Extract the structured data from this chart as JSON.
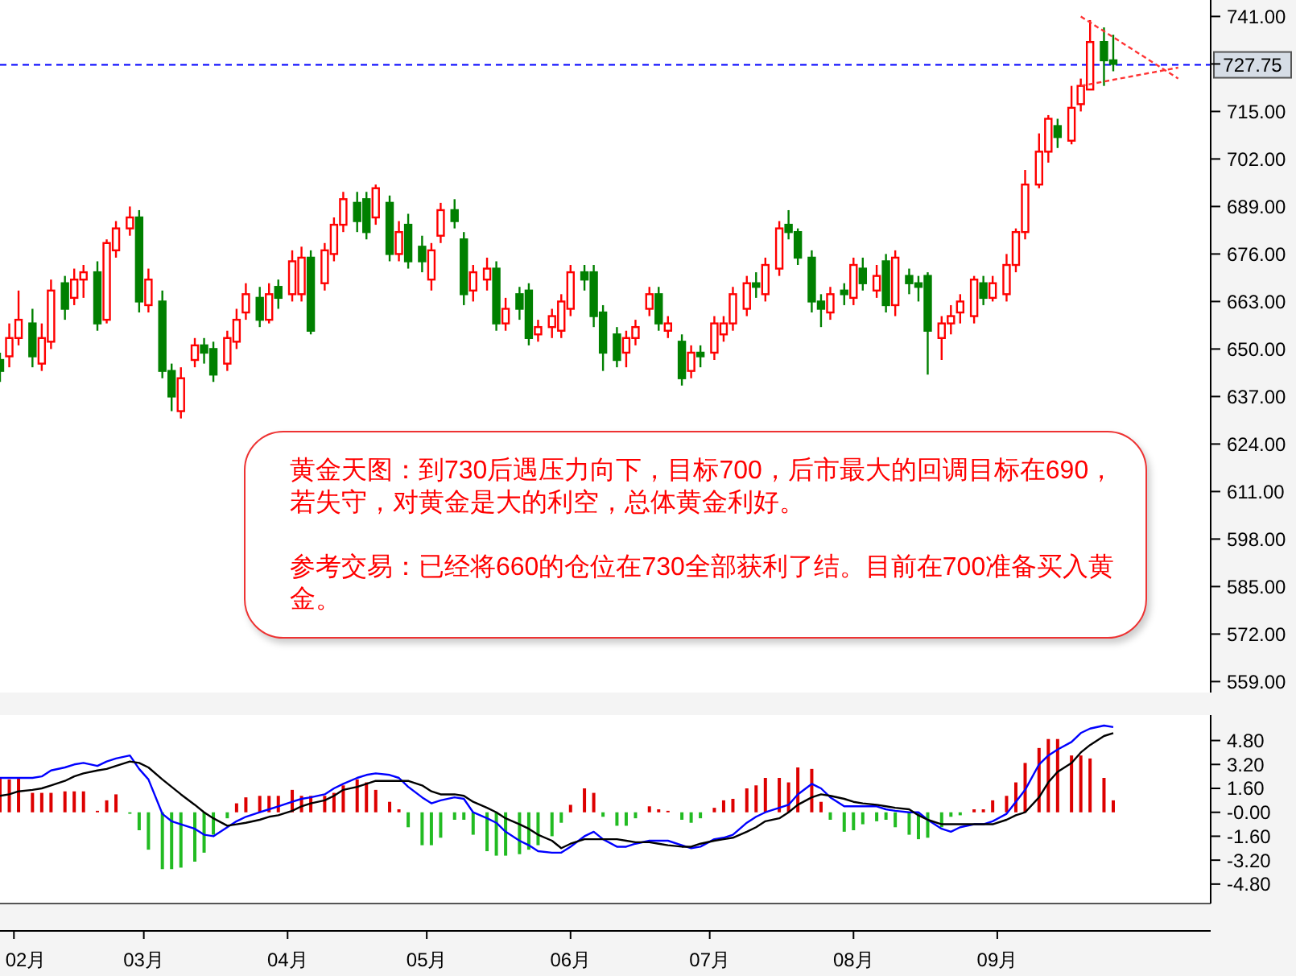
{
  "chart_data": [
    {
      "type": "candlestick",
      "x": [
        "--01-29",
        "--01-31",
        "--02-02",
        "--02-05",
        "--02-07",
        "--02-09",
        "--02-12",
        "--02-14",
        "--02-16",
        "--02-19",
        "--02-21",
        "--02-23",
        "--02-26",
        "--02-28",
        "--03-02",
        "--03-05",
        "--03-07",
        "--03-09",
        "--03-12",
        "--03-14",
        "--03-16",
        "--03-19",
        "--03-21",
        "--03-23",
        "--03-26",
        "--03-28",
        "--03-30",
        "--04-02",
        "--04-04",
        "--04-06",
        "--04-09",
        "--04-11",
        "--04-13",
        "--04-16",
        "--04-18",
        "--04-20",
        "--04-23",
        "--04-25",
        "--04-27",
        "--04-30",
        "--05-02",
        "--05-04",
        "--05-07",
        "--05-09",
        "--05-11",
        "--05-14",
        "--05-16",
        "--05-18",
        "--05-21",
        "--05-23",
        "--05-25",
        "--05-28",
        "--05-30",
        "--06-01",
        "--06-04",
        "--06-06",
        "--06-08",
        "--06-11",
        "--06-13",
        "--06-15",
        "--06-18",
        "--06-20",
        "--06-22",
        "--06-25",
        "--06-27",
        "--06-29",
        "--07-02",
        "--07-04",
        "--07-06",
        "--07-09",
        "--07-11",
        "--07-13",
        "--07-16",
        "--07-18",
        "--07-20",
        "--07-23",
        "--07-25",
        "--07-27",
        "--07-30",
        "--08-01",
        "--08-03",
        "--08-06",
        "--08-08",
        "--08-10",
        "--08-13",
        "--08-15",
        "--08-17",
        "--08-20",
        "--08-22",
        "--08-24",
        "--08-27",
        "--08-29",
        "--08-31",
        "--09-03",
        "--09-05",
        "--09-07",
        "--09-10",
        "--09-12",
        "--09-14",
        "--09-17",
        "--09-19",
        "--09-21",
        "--09-24",
        "--09-26"
      ],
      "ohlc": [
        [
          647,
          649,
          641,
          644
        ],
        [
          648,
          657,
          645,
          653
        ],
        [
          653,
          666,
          651,
          658
        ],
        [
          657,
          661,
          645,
          648
        ],
        [
          646,
          657,
          644,
          653
        ],
        [
          652,
          669,
          650,
          666
        ],
        [
          668,
          670,
          658,
          661
        ],
        [
          664,
          672,
          662,
          669
        ],
        [
          669,
          673,
          664,
          671
        ],
        [
          671,
          674,
          655,
          657
        ],
        [
          658,
          680,
          657,
          679
        ],
        [
          677,
          685,
          675,
          683
        ],
        [
          683,
          689,
          681,
          686
        ],
        [
          686,
          688,
          660,
          663
        ],
        [
          662,
          672,
          660,
          669
        ],
        [
          663,
          666,
          642,
          644
        ],
        [
          644,
          646,
          633,
          637
        ],
        [
          633,
          645,
          631,
          642
        ],
        [
          647,
          653,
          645,
          651
        ],
        [
          651,
          653,
          646,
          649
        ],
        [
          650,
          652,
          641,
          643
        ],
        [
          646,
          655,
          644,
          653
        ],
        [
          652,
          661,
          650,
          658
        ],
        [
          660,
          668,
          658,
          665
        ],
        [
          664,
          667,
          656,
          658
        ],
        [
          658,
          668,
          657,
          665
        ],
        [
          667,
          669,
          661,
          664
        ],
        [
          665,
          677,
          663,
          674
        ],
        [
          665,
          678,
          663,
          675
        ],
        [
          675,
          677,
          654,
          655
        ],
        [
          668,
          679,
          666,
          677
        ],
        [
          676,
          686,
          674,
          684
        ],
        [
          684,
          693,
          682,
          691
        ],
        [
          690,
          693,
          682,
          685
        ],
        [
          691,
          693,
          680,
          682
        ],
        [
          686,
          695,
          684,
          694
        ],
        [
          690,
          692,
          674,
          676
        ],
        [
          676,
          685,
          674,
          682
        ],
        [
          684,
          687,
          672,
          674
        ],
        [
          678,
          681,
          671,
          674
        ],
        [
          669,
          679,
          666,
          677
        ],
        [
          681,
          690,
          679,
          688
        ],
        [
          688,
          691,
          683,
          685
        ],
        [
          680,
          682,
          662,
          665
        ],
        [
          666,
          673,
          663,
          671
        ],
        [
          669,
          675,
          666,
          672
        ],
        [
          672,
          674,
          655,
          657
        ],
        [
          657,
          664,
          655,
          661
        ],
        [
          665,
          667,
          658,
          661
        ],
        [
          666,
          668,
          651,
          653
        ],
        [
          654,
          658,
          652,
          656
        ],
        [
          656,
          661,
          653,
          659
        ],
        [
          655,
          665,
          653,
          663
        ],
        [
          661,
          673,
          659,
          671
        ],
        [
          671,
          673,
          666,
          669
        ],
        [
          671,
          673,
          656,
          659
        ],
        [
          660,
          662,
          644,
          649
        ],
        [
          654,
          656,
          645,
          647
        ],
        [
          649,
          655,
          645,
          653
        ],
        [
          653,
          658,
          651,
          656
        ],
        [
          661,
          667,
          659,
          665
        ],
        [
          665,
          667,
          655,
          657
        ],
        [
          655,
          659,
          653,
          657
        ],
        [
          652,
          654,
          640,
          642
        ],
        [
          644,
          651,
          642,
          649
        ],
        [
          649,
          651,
          645,
          648
        ],
        [
          649,
          659,
          647,
          657
        ],
        [
          654,
          659,
          652,
          657
        ],
        [
          657,
          667,
          655,
          665
        ],
        [
          661,
          670,
          659,
          668
        ],
        [
          668,
          671,
          664,
          667
        ],
        [
          665,
          675,
          663,
          673
        ],
        [
          672,
          685,
          670,
          683
        ],
        [
          684,
          688,
          680,
          682
        ],
        [
          682,
          683,
          673,
          675
        ],
        [
          675,
          677,
          660,
          663
        ],
        [
          663,
          665,
          656,
          661
        ],
        [
          660,
          667,
          658,
          665
        ],
        [
          666,
          668,
          662,
          665
        ],
        [
          664,
          675,
          662,
          673
        ],
        [
          672,
          675,
          666,
          668
        ],
        [
          666,
          673,
          664,
          670
        ],
        [
          674,
          676,
          660,
          662
        ],
        [
          662,
          677,
          659,
          675
        ],
        [
          670,
          672,
          665,
          668
        ],
        [
          668,
          670,
          663,
          667
        ],
        [
          670,
          671,
          643,
          655
        ],
        [
          653,
          659,
          647,
          657
        ],
        [
          657,
          662,
          654,
          659
        ],
        [
          660,
          665,
          657,
          663
        ],
        [
          659,
          670,
          657,
          669
        ],
        [
          668,
          670,
          662,
          664
        ],
        [
          664,
          670,
          663,
          668
        ],
        [
          665,
          676,
          663,
          673
        ],
        [
          673,
          683,
          671,
          682
        ],
        [
          682,
          699,
          680,
          695
        ],
        [
          695,
          709,
          694,
          704
        ],
        [
          704,
          714,
          701,
          713
        ],
        [
          711,
          713,
          705,
          708
        ],
        [
          707,
          722,
          706,
          716
        ],
        [
          717,
          724,
          715,
          722
        ],
        [
          721,
          740,
          721,
          734
        ],
        [
          734,
          738,
          722,
          729
        ],
        [
          729,
          736,
          726,
          728
        ]
      ],
      "xlim": [
        "--01-29",
        "--10-17"
      ],
      "ylim": [
        556,
        745.5
      ],
      "yticks": [
        {
          "value": 741,
          "label": "741.00"
        },
        {
          "value": 728,
          "label": null
        },
        {
          "value": 715,
          "label": "715.00"
        },
        {
          "value": 702,
          "label": "702.00"
        },
        {
          "value": 689,
          "label": "689.00"
        },
        {
          "value": 676,
          "label": "676.00"
        },
        {
          "value": 663,
          "label": "663.00"
        },
        {
          "value": 650,
          "label": "650.00"
        },
        {
          "value": 637,
          "label": "637.00"
        },
        {
          "value": 624,
          "label": "624.00"
        },
        {
          "value": 611,
          "label": "611.00"
        },
        {
          "value": 598,
          "label": "598.00"
        },
        {
          "value": 585,
          "label": "585.00"
        },
        {
          "value": 572,
          "label": "572.00"
        },
        {
          "value": 559,
          "label": "559.00"
        }
      ],
      "tick_labels": "y",
      "series": [
        {
          "type": "line",
          "color": "#ff3333",
          "line_style": "dashed",
          "x": [
            "--09-19",
            "--10-10"
          ],
          "values": [
            741,
            724
          ]
        },
        {
          "type": "line",
          "color": "#ff3333",
          "line_style": "dashed",
          "x": [
            "--09-19",
            "--10-10"
          ],
          "values": [
            722,
            727
          ]
        }
      ],
      "ref_lines": [
        {
          "axis": "y",
          "value": 727.75,
          "label": "727.75",
          "color": "#0000ff",
          "line_style": "dashed"
        }
      ],
      "annotations": [
        "黄金天图：到730后遇压力向下，目标700，后市最大的回调目标在690，若失守，对黄金是大的利空，总体黄金利好。",
        "参考交易：已经将660的仓位在730全部获利了结。目前在700准备买入黄金。"
      ]
    },
    {
      "type": "line",
      "x": [
        "--01-29",
        "--01-31",
        "--02-02",
        "--02-05",
        "--02-07",
        "--02-09",
        "--02-12",
        "--02-14",
        "--02-16",
        "--02-19",
        "--02-21",
        "--02-23",
        "--02-26",
        "--02-28",
        "--03-02",
        "--03-05",
        "--03-07",
        "--03-09",
        "--03-12",
        "--03-14",
        "--03-16",
        "--03-19",
        "--03-21",
        "--03-23",
        "--03-26",
        "--03-28",
        "--03-30",
        "--04-02",
        "--04-04",
        "--04-06",
        "--04-09",
        "--04-11",
        "--04-13",
        "--04-16",
        "--04-18",
        "--04-20",
        "--04-23",
        "--04-25",
        "--04-27",
        "--04-30",
        "--05-02",
        "--05-04",
        "--05-07",
        "--05-09",
        "--05-11",
        "--05-14",
        "--05-16",
        "--05-18",
        "--05-21",
        "--05-23",
        "--05-25",
        "--05-28",
        "--05-30",
        "--06-01",
        "--06-04",
        "--06-06",
        "--06-08",
        "--06-11",
        "--06-13",
        "--06-15",
        "--06-18",
        "--06-20",
        "--06-22",
        "--06-25",
        "--06-27",
        "--06-29",
        "--07-02",
        "--07-04",
        "--07-06",
        "--07-09",
        "--07-11",
        "--07-13",
        "--07-16",
        "--07-18",
        "--07-20",
        "--07-23",
        "--07-25",
        "--07-27",
        "--07-30",
        "--08-01",
        "--08-03",
        "--08-06",
        "--08-08",
        "--08-10",
        "--08-13",
        "--08-15",
        "--08-17",
        "--08-20",
        "--08-22",
        "--08-24",
        "--08-27",
        "--08-29",
        "--08-31",
        "--09-03",
        "--09-05",
        "--09-07",
        "--09-10",
        "--09-12",
        "--09-14",
        "--09-17",
        "--09-19",
        "--09-21",
        "--09-24",
        "--09-26"
      ],
      "series": [
        {
          "type": "bar",
          "color": "#dd0000",
          "values": [
            2.3,
            2.2,
            2.3,
            1.3,
            1.3,
            1.3,
            1.4,
            1.4,
            1.4,
            0.1,
            0.8,
            1.2,
            null,
            null,
            null,
            null,
            null,
            null,
            null,
            null,
            null,
            null,
            0.6,
            1.0,
            1.1,
            1.1,
            1.1,
            1.5,
            1.1,
            1.1,
            1.1,
            1.3,
            1.8,
            2.2,
            2.0,
            1.5,
            0.7,
            0.2,
            null,
            null,
            null,
            null,
            null,
            null,
            null,
            null,
            null,
            null,
            null,
            null,
            null,
            null,
            null,
            0.5,
            1.6,
            1.3,
            null,
            null,
            null,
            null,
            0.4,
            0.2,
            0.1,
            null,
            null,
            null,
            0.3,
            0.8,
            0.9,
            1.6,
            1.8,
            2.3,
            2.3,
            2.0,
            3.0,
            2.9,
            0.7,
            null,
            null,
            null,
            null,
            null,
            null,
            null,
            null,
            null,
            null,
            null,
            null,
            null,
            0.2,
            0.2,
            0.8,
            1.1,
            2.0,
            3.3,
            4.3,
            4.9,
            4.9,
            3.8,
            3.8,
            3.6,
            2.3,
            0.8
          ]
        },
        {
          "type": "bar",
          "color": "#22bb22",
          "values": [
            null,
            null,
            null,
            null,
            null,
            null,
            null,
            null,
            null,
            null,
            null,
            null,
            -0.1,
            -1.2,
            -2.5,
            -3.8,
            -3.8,
            -3.7,
            -3.3,
            -2.7,
            -1.5,
            -0.4,
            null,
            null,
            null,
            null,
            null,
            null,
            null,
            null,
            null,
            null,
            null,
            null,
            null,
            null,
            null,
            null,
            -1.0,
            -2.2,
            -2.2,
            -1.7,
            -0.5,
            -0.5,
            -1.5,
            -2.6,
            -2.9,
            -2.9,
            -2.8,
            -2.5,
            -2.2,
            -1.6,
            -0.7,
            null,
            null,
            null,
            -0.3,
            -0.9,
            -0.9,
            -0.4,
            null,
            null,
            null,
            -0.5,
            -0.7,
            -0.4,
            null,
            null,
            null,
            null,
            null,
            null,
            null,
            null,
            null,
            null,
            null,
            -0.5,
            -1.3,
            -1.2,
            -0.8,
            -0.6,
            -0.5,
            -1.0,
            -1.5,
            -1.8,
            -1.7,
            -1.0,
            -0.3,
            -0.2,
            null,
            null,
            null,
            null,
            null,
            null,
            null,
            null,
            null,
            null,
            null,
            null,
            null,
            null
          ]
        },
        {
          "type": "line",
          "color": "#0000ff",
          "values": [
            2.3,
            2.3,
            2.3,
            2.3,
            2.4,
            2.8,
            3.0,
            3.2,
            3.3,
            3.1,
            3.4,
            3.6,
            3.8,
            2.9,
            2.2,
            -0.1,
            -0.6,
            -0.8,
            -1.1,
            -1.5,
            -1.6,
            -1.0,
            -0.6,
            -0.3,
            0.0,
            0.2,
            0.4,
            0.7,
            0.9,
            1.0,
            1.2,
            1.6,
            1.9,
            2.3,
            2.5,
            2.6,
            2.5,
            2.3,
            1.7,
            1.0,
            0.6,
            0.8,
            1.0,
            0.9,
            0.0,
            -0.4,
            -0.7,
            -1.3,
            -1.9,
            -2.2,
            -2.6,
            -2.7,
            -2.7,
            -2.3,
            -1.6,
            -1.3,
            -1.8,
            -2.3,
            -2.3,
            -2.1,
            -1.9,
            -1.9,
            -1.9,
            -2.2,
            -2.4,
            -2.3,
            -1.8,
            -1.7,
            -1.5,
            -0.7,
            -0.3,
            0.0,
            0.3,
            0.5,
            1.2,
            1.9,
            1.6,
            1.0,
            0.4,
            0.4,
            0.4,
            0.4,
            0.2,
            0.1,
            0.0,
            0.0,
            -0.5,
            -1.1,
            -1.3,
            -1.0,
            -0.8,
            -0.8,
            -0.6,
            -0.1,
            0.7,
            1.5,
            3.2,
            3.8,
            4.2,
            4.7,
            5.3,
            5.6,
            5.8,
            5.7
          ]
        },
        {
          "type": "line",
          "color": "#000000",
          "values": [
            1.1,
            1.2,
            1.4,
            1.5,
            1.6,
            1.8,
            2.1,
            2.4,
            2.6,
            2.8,
            2.9,
            3.1,
            3.4,
            3.3,
            3.0,
            2.2,
            1.7,
            1.2,
            0.5,
            0.0,
            -0.4,
            -0.9,
            -0.8,
            -0.7,
            -0.5,
            -0.3,
            -0.2,
            0.1,
            0.4,
            0.6,
            0.8,
            1.1,
            1.5,
            1.7,
            1.9,
            2.1,
            2.1,
            2.1,
            2.1,
            1.8,
            1.4,
            1.2,
            1.2,
            1.1,
            0.7,
            0.3,
            0.0,
            -0.4,
            -0.8,
            -1.1,
            -1.5,
            -1.9,
            -2.4,
            -2.1,
            -1.8,
            -1.8,
            -1.8,
            -1.8,
            -1.9,
            -2.0,
            -2.0,
            -2.1,
            -2.2,
            -2.3,
            -2.3,
            -2.1,
            -1.9,
            -1.8,
            -1.7,
            -1.3,
            -1.0,
            -0.6,
            -0.4,
            0.0,
            0.5,
            1.0,
            1.2,
            1.1,
            0.9,
            0.7,
            0.6,
            0.5,
            0.4,
            0.3,
            0.2,
            -0.2,
            -0.5,
            -0.8,
            -0.8,
            -0.8,
            -0.8,
            -0.8,
            -0.8,
            -0.5,
            -0.2,
            0.0,
            1.0,
            2.0,
            2.7,
            3.3,
            4.0,
            4.5,
            5.1,
            5.3
          ]
        }
      ],
      "xlim": [
        "--01-29",
        "--10-17"
      ],
      "xticks": [
        {
          "value": "--02-01",
          "label": "02月"
        },
        {
          "value": "--03-01",
          "label": "03月"
        },
        {
          "value": "--04-01",
          "label": "04月"
        },
        {
          "value": "--05-01",
          "label": "05月"
        },
        {
          "value": "--06-01",
          "label": "06月"
        },
        {
          "value": "--07-01",
          "label": "07月"
        },
        {
          "value": "--08-01",
          "label": "08月"
        },
        {
          "value": "--09-01",
          "label": "09月"
        }
      ],
      "ylim": [
        -6.1,
        6.5
      ],
      "yticks": [
        {
          "value": 4.8,
          "label": "4.80"
        },
        {
          "value": 3.2,
          "label": "3.20"
        },
        {
          "value": 1.6,
          "label": "1.60"
        },
        {
          "value": 0,
          "label": "-0.00"
        },
        {
          "value": -1.6,
          "label": "-1.60"
        },
        {
          "value": -3.2,
          "label": "-3.20"
        },
        {
          "value": -4.8,
          "label": "-4.80"
        }
      ]
    }
  ]
}
